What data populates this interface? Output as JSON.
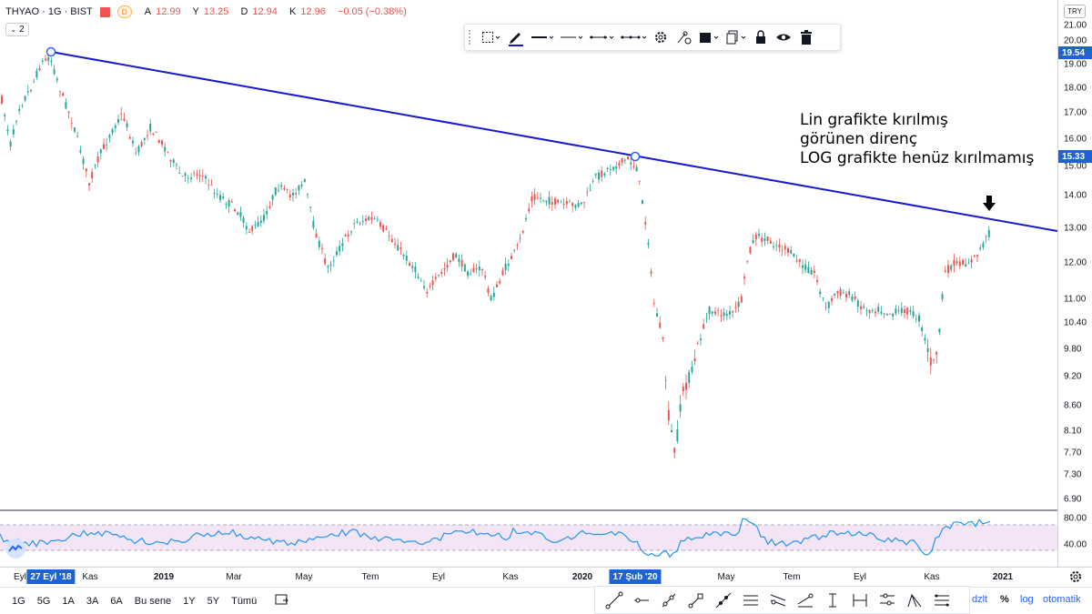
{
  "header": {
    "symbol": "THYAO · 1G · BIST",
    "badge": "D",
    "ohlc": [
      {
        "label": "A",
        "value": "12.99"
      },
      {
        "label": "Y",
        "value": "13.25"
      },
      {
        "label": "D",
        "value": "12.94"
      },
      {
        "label": "K",
        "value": "12.96"
      },
      {
        "label": "",
        "value": "−0.05 (−0.38%)"
      }
    ],
    "indicator_count": "2"
  },
  "drawing_toolbar": {
    "items": [
      "select-icon",
      "pencil-icon",
      "line-style-solid",
      "line-style-thin",
      "line-style-dashed",
      "line-style-points",
      "gear-icon",
      "alert-icon",
      "fill-icon",
      "clone-icon",
      "lock-icon",
      "eye-icon",
      "trash-icon"
    ],
    "active_color": "#1a1ac8"
  },
  "price_axis": {
    "currency": "TRY",
    "labels": [
      "21.00",
      "20.00",
      "19.00",
      "18.00",
      "17.00",
      "16.00",
      "15.00",
      "14.00",
      "13.00",
      "12.00",
      "11.00",
      "10.40",
      "9.80",
      "9.20",
      "8.60",
      "8.10",
      "7.70",
      "7.30",
      "6.90"
    ],
    "markers": [
      "19.54",
      "15.33"
    ]
  },
  "time_axis": {
    "labels": [
      {
        "text": "Eyl",
        "bold": false
      },
      {
        "text": "Kas",
        "bold": false
      },
      {
        "text": "2019",
        "bold": true
      },
      {
        "text": "Mar",
        "bold": false
      },
      {
        "text": "May",
        "bold": false
      },
      {
        "text": "Tem",
        "bold": false
      },
      {
        "text": "Eyl",
        "bold": false
      },
      {
        "text": "Kas",
        "bold": false
      },
      {
        "text": "2020",
        "bold": true
      },
      {
        "text": "May",
        "bold": false
      },
      {
        "text": "Tem",
        "bold": false
      },
      {
        "text": "Eyl",
        "bold": false
      },
      {
        "text": "Kas",
        "bold": false
      },
      {
        "text": "2021",
        "bold": true
      }
    ],
    "markers": [
      "27 Eyl '18",
      "17 Şub '20"
    ]
  },
  "trendline": {
    "color": "#1a1ac8",
    "points": [
      {
        "date": "27 Eyl '18",
        "price": 19.54
      },
      {
        "date": "17 Şub '20",
        "price": 15.33
      }
    ]
  },
  "annotation": {
    "lines": [
      "Lin grafikte kırılmış",
      "görünen direnç",
      "LOG grafikte henüz kırılmamış"
    ]
  },
  "rsi": {
    "labels": [
      "80.00",
      "40.00"
    ]
  },
  "bottom_bar": {
    "ranges": [
      "1G",
      "5G",
      "1A",
      "3A",
      "6A",
      "Bu sene",
      "1Y",
      "5Y",
      "Tümü"
    ],
    "options": [
      "dzlt",
      "%",
      "log",
      "otomatik"
    ]
  },
  "colors": {
    "up": "#26a69a",
    "down": "#ef5350",
    "marker": "#1e63d6",
    "rsi_line": "#2196f3",
    "rsi_band": "#f3e5f5"
  }
}
